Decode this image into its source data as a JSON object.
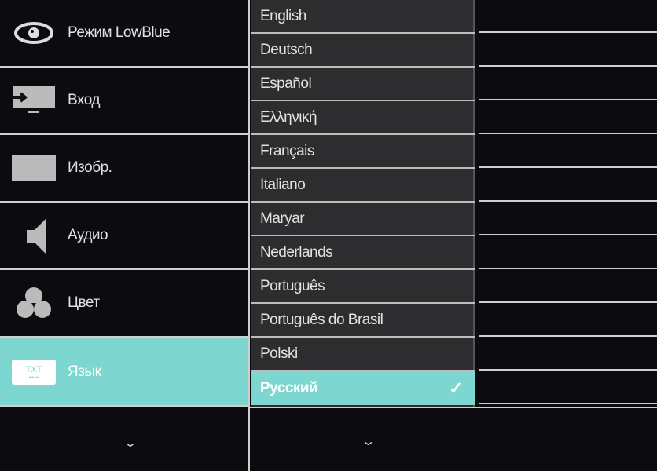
{
  "menu": {
    "items": [
      {
        "label": "Режим LowBlue",
        "icon": "eye-icon"
      },
      {
        "label": "Вход",
        "icon": "input-icon"
      },
      {
        "label": "Изобр.",
        "icon": "picture-icon"
      },
      {
        "label": "Аудио",
        "icon": "speaker-icon"
      },
      {
        "label": "Цвет",
        "icon": "color-icon"
      },
      {
        "label": "Язык",
        "icon": "language-icon",
        "icon_text": "TXT"
      }
    ],
    "selected": "Язык"
  },
  "languages": {
    "items": [
      "English",
      "Deutsch",
      "Español",
      "Ελληνική",
      "Français",
      "Italiano",
      "Maryar",
      "Nederlands",
      "Português",
      "Português do Brasil",
      "Polski",
      "Русский"
    ],
    "selected": "Русский"
  },
  "colors": {
    "accent": "#7dd6cf",
    "background": "#0c0c10",
    "list_bg": "#2d2d2f"
  }
}
